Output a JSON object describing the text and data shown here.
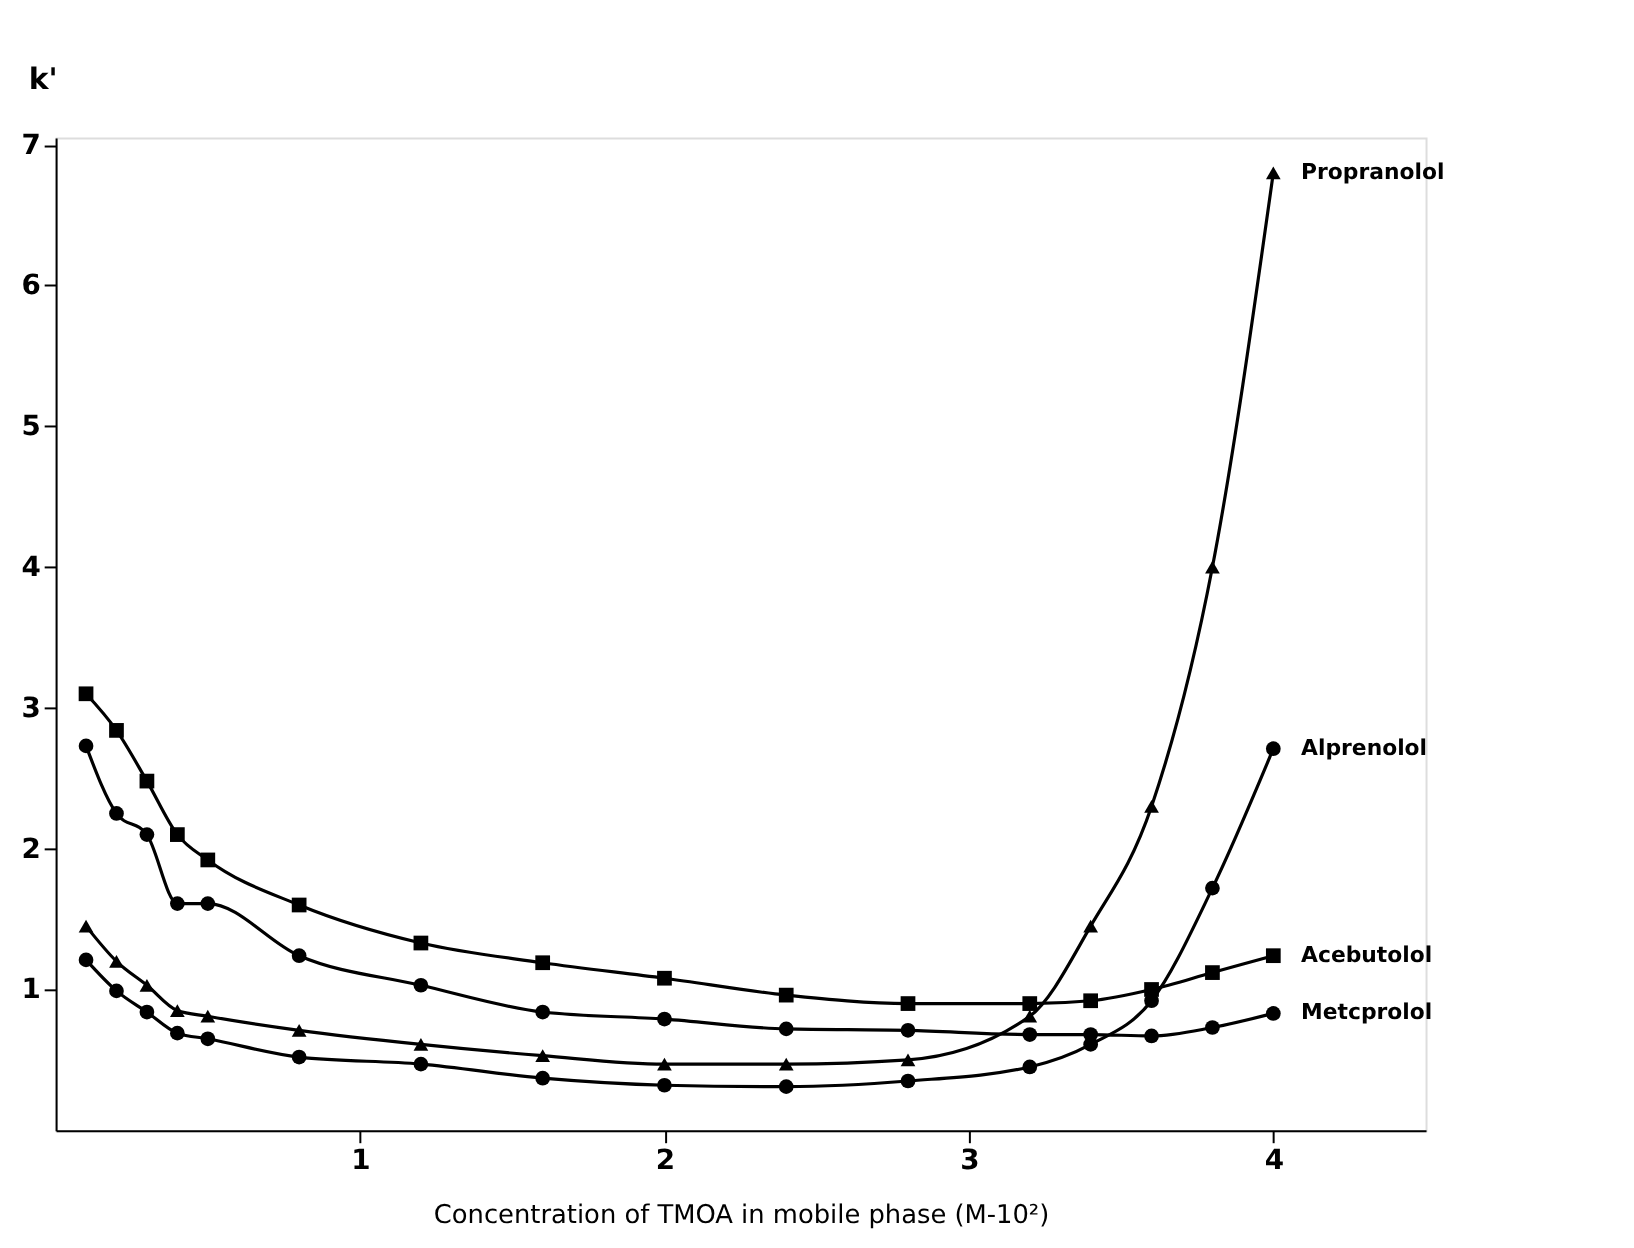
{
  "chart_data": {
    "type": "line",
    "xlabel": "Concentration of TMOA in mobile phase (M-10²)",
    "ylabel": "k'",
    "x": [
      0.1,
      0.2,
      0.3,
      0.4,
      0.5,
      0.8,
      1.2,
      1.6,
      2.0,
      2.4,
      2.8,
      3.2,
      3.4,
      3.6,
      3.8,
      4.0
    ],
    "series": [
      {
        "name": "Propranolol",
        "color": "#000000",
        "marker": "triangle",
        "values": [
          1.45,
          1.2,
          1.03,
          0.85,
          0.81,
          0.71,
          0.61,
          0.53,
          0.47,
          0.47,
          0.5,
          0.81,
          1.45,
          2.3,
          4.0,
          6.8
        ]
      },
      {
        "name": "Alprenolol",
        "color": "#000000",
        "marker": "circle",
        "values": [
          1.21,
          0.99,
          0.84,
          0.69,
          0.65,
          0.52,
          0.47,
          0.37,
          0.32,
          0.31,
          0.35,
          0.45,
          0.61,
          0.92,
          1.72,
          2.71
        ]
      },
      {
        "name": "Acebutolol",
        "color": "#000000",
        "marker": "square",
        "values": [
          3.1,
          2.84,
          2.48,
          2.1,
          1.92,
          1.6,
          1.33,
          1.19,
          1.08,
          0.96,
          0.9,
          0.9,
          0.92,
          1.0,
          1.12,
          1.24
        ]
      },
      {
        "name": "Metcprolol",
        "color": "#000000",
        "marker": "circle",
        "values": [
          2.73,
          2.25,
          2.1,
          1.61,
          1.61,
          1.24,
          1.03,
          0.84,
          0.79,
          0.72,
          0.71,
          0.68,
          0.68,
          0.67,
          0.73,
          0.83
        ]
      }
    ],
    "xlim": [
      0,
      4.5
    ],
    "ylim": [
      0,
      7.05
    ],
    "xticks": [
      1,
      2,
      3,
      4
    ],
    "yticks": [
      1,
      2,
      3,
      4,
      5,
      6,
      7
    ],
    "grid": false,
    "legend": false,
    "line_style": "solid"
  }
}
